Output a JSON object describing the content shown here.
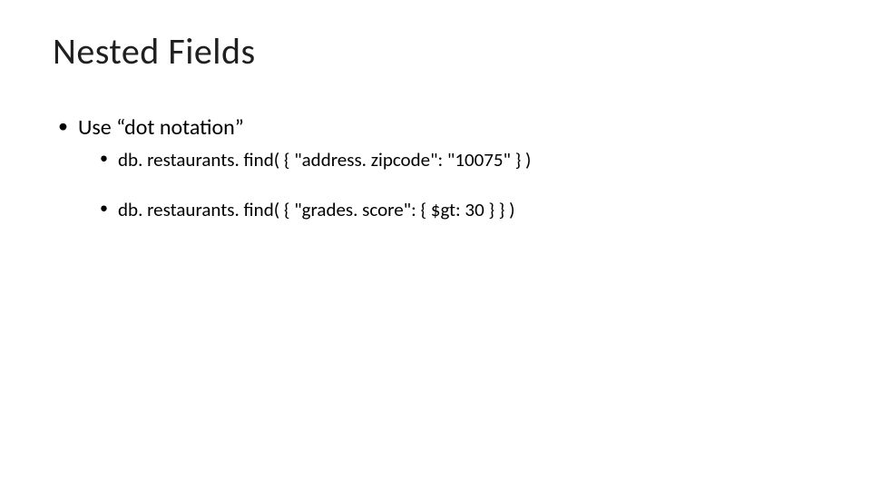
{
  "title": "Nested Fields",
  "bullets": {
    "level1": {
      "item1": "Use “dot notation”"
    },
    "level2": {
      "item1": "db. restaurants. find( { \"address. zipcode\": \"10075\" } )",
      "item2": "db. restaurants. find( { \"grades. score\": { $gt: 30 } } )"
    }
  },
  "style": {
    "background_color": "#ffffff",
    "text_color": "#000000",
    "title_fontsize": 40,
    "level1_fontsize": 24,
    "level2_fontsize": 21,
    "font_family": "Calibri"
  }
}
